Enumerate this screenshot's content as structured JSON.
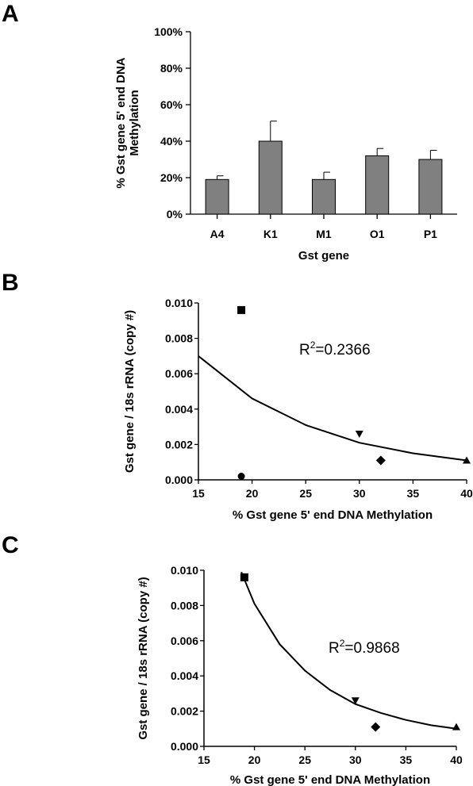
{
  "chart_data": [
    {
      "panel": "A",
      "type": "bar",
      "categories": [
        "A4",
        "K1",
        "M1",
        "O1",
        "P1"
      ],
      "values": [
        19,
        40,
        19,
        32,
        30
      ],
      "errors": [
        2,
        11,
        4,
        4,
        5
      ],
      "ylim": [
        0,
        100
      ],
      "yticks": [
        0,
        20,
        40,
        60,
        80,
        100
      ],
      "ytick_labels": [
        "0%",
        "20%",
        "40%",
        "60%",
        "80%",
        "100%"
      ],
      "xlabel": "Gst gene",
      "ylabel": [
        "% Gst gene 5' end DNA",
        "Methylation"
      ],
      "bar_color": "#808080",
      "grid": false
    },
    {
      "panel": "B",
      "type": "scatter",
      "points": [
        {
          "x": 19,
          "y": 0.0096,
          "marker": "square"
        },
        {
          "x": 19,
          "y": 0.0002,
          "marker": "circle"
        },
        {
          "x": 30,
          "y": 0.0026,
          "marker": "triangle-down"
        },
        {
          "x": 32,
          "y": 0.0011,
          "marker": "diamond"
        },
        {
          "x": 40,
          "y": 0.0011,
          "marker": "triangle-up"
        }
      ],
      "fit": {
        "type": "exponential",
        "x": [
          15,
          20,
          25,
          30,
          35,
          40
        ],
        "y": [
          0.007,
          0.0046,
          0.0031,
          0.0021,
          0.0015,
          0.0011
        ]
      },
      "xlim": [
        15,
        40
      ],
      "ylim": [
        0,
        0.01
      ],
      "xticks": [
        "15",
        "20",
        "25",
        "30",
        "35",
        "40"
      ],
      "yticks": [
        "0.000",
        "0.002",
        "0.004",
        "0.006",
        "0.008",
        "0.010"
      ],
      "xlabel": "% Gst gene 5' end DNA Methylation",
      "ylabel": "Gst gene / 18s rRNA (copy #)",
      "annotation": {
        "prefix": "R",
        "sup": "2",
        "value": "=0.2366"
      },
      "grid": false
    },
    {
      "panel": "C",
      "type": "scatter",
      "points": [
        {
          "x": 19,
          "y": 0.0096,
          "marker": "square"
        },
        {
          "x": 30,
          "y": 0.0026,
          "marker": "triangle-down"
        },
        {
          "x": 32,
          "y": 0.0011,
          "marker": "diamond"
        },
        {
          "x": 40,
          "y": 0.0011,
          "marker": "triangle-up"
        }
      ],
      "fit": {
        "type": "exponential",
        "x": [
          18.7,
          20,
          22.5,
          25,
          27.5,
          30,
          32.5,
          35,
          37.5,
          40
        ],
        "y": [
          0.0099,
          0.0081,
          0.0058,
          0.0043,
          0.0032,
          0.0024,
          0.0019,
          0.0015,
          0.0012,
          0.001
        ]
      },
      "xlim": [
        15,
        40
      ],
      "ylim": [
        0,
        0.01
      ],
      "xticks": [
        "15",
        "20",
        "25",
        "30",
        "35",
        "40"
      ],
      "yticks": [
        "0.000",
        "0.002",
        "0.004",
        "0.006",
        "0.008",
        "0.010"
      ],
      "xlabel": "% Gst gene 5' end DNA Methylation",
      "ylabel": "Gst gene / 18s rRNA (copy #)",
      "annotation": {
        "prefix": "R",
        "sup": "2",
        "value": "=0.9868"
      },
      "grid": false
    }
  ]
}
